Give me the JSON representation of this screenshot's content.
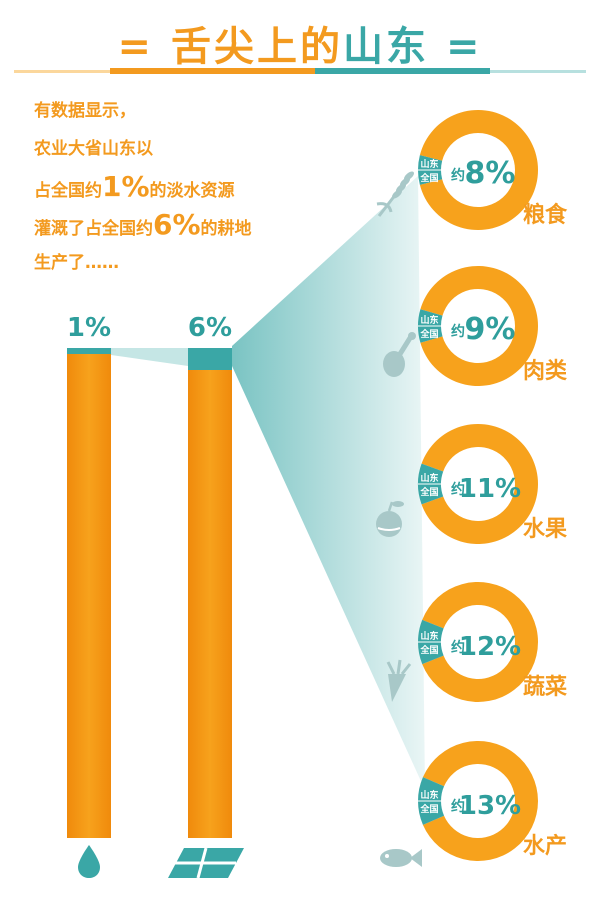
{
  "title": {
    "text_orange": "舌尖上的",
    "text_teal": "山东",
    "deco_left": "=",
    "deco_right": "="
  },
  "intro": {
    "line1": "有数据显示，",
    "line2": "农业大省山东以",
    "line3_pre": "占全国约",
    "line3_num": "1%",
    "line3_post": "的淡水资源",
    "line4_pre": "灌溉了占全国约",
    "line4_num": "6%",
    "line4_post": "的耕地",
    "line5": "生产了……"
  },
  "colors": {
    "orange": "#f7a21c",
    "orange_dark": "#f08a0c",
    "teal": "#3aa7a6",
    "teal_light": "#c5e6e5",
    "icon_gray": "#a8c8c8"
  },
  "chart_data": [
    {
      "type": "bar",
      "categories": [
        "freshwater",
        "farmland"
      ],
      "icons": [
        "water-drop-icon",
        "farmland-icon"
      ],
      "values": [
        1,
        6
      ],
      "value_labels": [
        "1%",
        "6%"
      ],
      "ylim": [
        0,
        100
      ]
    },
    {
      "type": "pie",
      "ring_label_top": "山东",
      "ring_label_bottom": "全国",
      "prefix": "约",
      "items": [
        {
          "category": "粮食",
          "value": 8,
          "label": "8%",
          "icon": "grain-icon"
        },
        {
          "category": "肉类",
          "value": 9,
          "label": "9%",
          "icon": "drumstick-icon"
        },
        {
          "category": "水果",
          "value": 11,
          "label": "11%",
          "icon": "apple-icon"
        },
        {
          "category": "蔬菜",
          "value": 12,
          "label": "12%",
          "icon": "carrot-icon"
        },
        {
          "category": "水产",
          "value": 13,
          "label": "13%",
          "icon": "fish-icon"
        }
      ]
    }
  ]
}
